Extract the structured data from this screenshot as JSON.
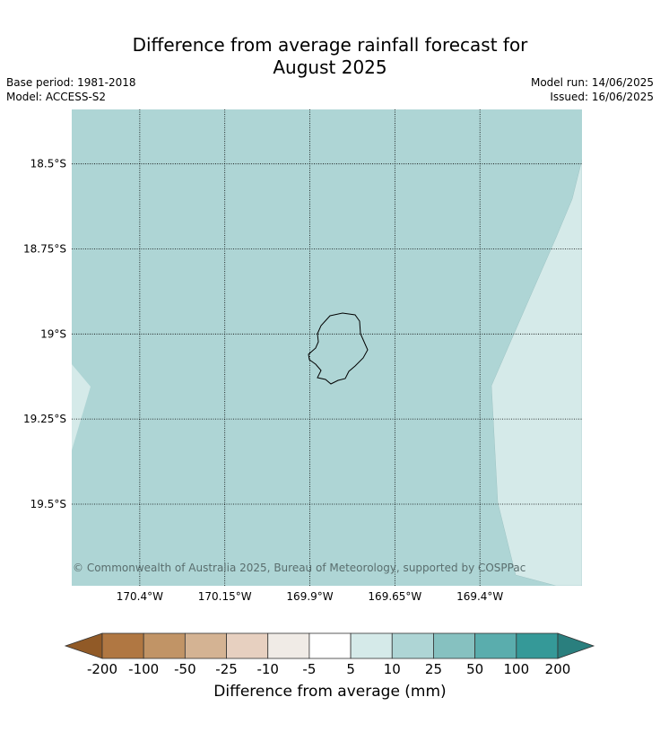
{
  "title_line1": "Difference from average rainfall forecast for",
  "title_line2": "August 2025",
  "base_period": "Base period: 1981-2018",
  "model": "Model: ACCESS-S2",
  "model_run": "Model run: 14/06/2025",
  "issued": "Issued: 16/06/2025",
  "copyright": "© Commonwealth of Australia 2025, Bureau of Meteorology, supported by COSPPac",
  "map": {
    "lon_range": [
      -170.6,
      -169.1
    ],
    "lat_range": [
      -19.74,
      -18.34
    ],
    "lat_ticks": [
      {
        "value": -18.5,
        "label": "18.5°S"
      },
      {
        "value": -18.75,
        "label": "18.75°S"
      },
      {
        "value": -19.0,
        "label": "19°S"
      },
      {
        "value": -19.25,
        "label": "19.25°S"
      },
      {
        "value": -19.5,
        "label": "19.5°S"
      }
    ],
    "lon_ticks": [
      {
        "value": -170.4,
        "label": "170.4°W"
      },
      {
        "value": -170.15,
        "label": "170.15°W"
      },
      {
        "value": -169.9,
        "label": "169.9°W"
      },
      {
        "value": -169.65,
        "label": "169.65°W"
      },
      {
        "value": -169.4,
        "label": "169.4°W"
      }
    ],
    "background_category": "10 to 25",
    "background_color": "#aed5d5",
    "light_category": "5 to 10",
    "light_color": "#d5eae9",
    "coast_color": "#000000",
    "grid": "dotted"
  },
  "colorbar": {
    "label": "Difference from average (mm)",
    "ticks": [
      "-200",
      "-100",
      "-50",
      "-25",
      "-10",
      "-5",
      "5",
      "10",
      "25",
      "50",
      "100",
      "200"
    ],
    "colors": [
      "#a76a31",
      "#b07742",
      "#c19466",
      "#d4b393",
      "#e7d0c0",
      "#f0ebe6",
      "#ffffff",
      "#d5eae9",
      "#aed5d5",
      "#86c1c0",
      "#5aadad",
      "#359998",
      "#2a7f7e"
    ]
  }
}
